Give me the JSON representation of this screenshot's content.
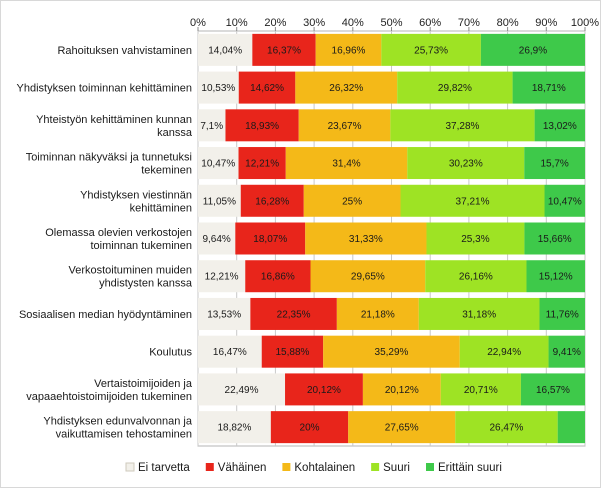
{
  "chart_data": {
    "type": "bar",
    "orientation": "horizontal",
    "stacked": true,
    "percent_stacked": true,
    "xlim": [
      0,
      100
    ],
    "x_ticks": [
      "0%",
      "10%",
      "20%",
      "30%",
      "40%",
      "50%",
      "60%",
      "70%",
      "80%",
      "90%",
      "100%"
    ],
    "x_axis_position": "top",
    "grid": true,
    "legend_position": "bottom",
    "categories": [
      [
        "Rahoituksen vahvistaminen"
      ],
      [
        "Yhdistyksen toiminnan kehittäminen"
      ],
      [
        "Yhteistyön kehittäminen kunnan",
        "kanssa"
      ],
      [
        "Toiminnan näkyväksi ja tunnetuksi",
        "tekeminen"
      ],
      [
        "Yhdistyksen viestinnän",
        "kehittäminen"
      ],
      [
        "Olemassa olevien verkostojen",
        "toiminnan tukeminen"
      ],
      [
        "Verkostoituminen muiden",
        "yhdistysten kanssa"
      ],
      [
        "Sosiaalisen median hyödyntäminen"
      ],
      [
        "Koulutus"
      ],
      [
        "Vertaistoimijoiden ja",
        "vapaaehtoistoimijoiden tukeminen"
      ],
      [
        "Yhdistyksen edunvalvonnan ja",
        "vaikuttamisen tehostaminen"
      ]
    ],
    "series": [
      {
        "name": "Ei tarvetta",
        "color": "#f2f0ea",
        "values": [
          14.04,
          10.53,
          7.1,
          10.47,
          11.05,
          9.64,
          12.21,
          13.53,
          16.47,
          22.49,
          18.82
        ],
        "labels": [
          "14,04%",
          "10,53%",
          "7,1%",
          "10,47%",
          "11,05%",
          "9,64%",
          "12,21%",
          "13,53%",
          "16,47%",
          "22,49%",
          "18,82%"
        ]
      },
      {
        "name": "Vähäinen",
        "color": "#e8251b",
        "values": [
          16.37,
          14.62,
          18.93,
          12.21,
          16.28,
          18.07,
          16.86,
          22.35,
          15.88,
          20.12,
          20
        ],
        "labels": [
          "16,37%",
          "14,62%",
          "18,93%",
          "12,21%",
          "16,28%",
          "18,07%",
          "16,86%",
          "22,35%",
          "15,88%",
          "20,12%",
          "20%"
        ]
      },
      {
        "name": "Kohtalainen",
        "color": "#f4b918",
        "values": [
          16.96,
          26.32,
          23.67,
          31.4,
          25,
          31.33,
          29.65,
          21.18,
          35.29,
          20.12,
          27.65
        ],
        "labels": [
          "16,96%",
          "26,32%",
          "23,67%",
          "31,4%",
          "25%",
          "31,33%",
          "29,65%",
          "21,18%",
          "35,29%",
          "20,12%",
          "27,65%"
        ]
      },
      {
        "name": "Suuri",
        "color": "#9ee324",
        "values": [
          25.73,
          29.82,
          37.28,
          30.23,
          37.21,
          25.3,
          26.16,
          31.18,
          22.94,
          20.71,
          26.47
        ],
        "labels": [
          "25,73%",
          "29,82%",
          "37,28%",
          "30,23%",
          "37,21%",
          "25,3%",
          "26,16%",
          "31,18%",
          "22,94%",
          "20,71%",
          "26,47%"
        ]
      },
      {
        "name": "Erittäin suuri",
        "color": "#3ec94a",
        "values": [
          26.9,
          18.71,
          13.02,
          15.7,
          10.47,
          15.66,
          15.12,
          11.76,
          9.41,
          16.57,
          7.06
        ],
        "labels": [
          "26,9%",
          "18,71%",
          "13,02%",
          "15,7%",
          "10,47%",
          "15,66%",
          "15,12%",
          "11,76%",
          "9,41%",
          "16,57%",
          ""
        ]
      }
    ]
  }
}
